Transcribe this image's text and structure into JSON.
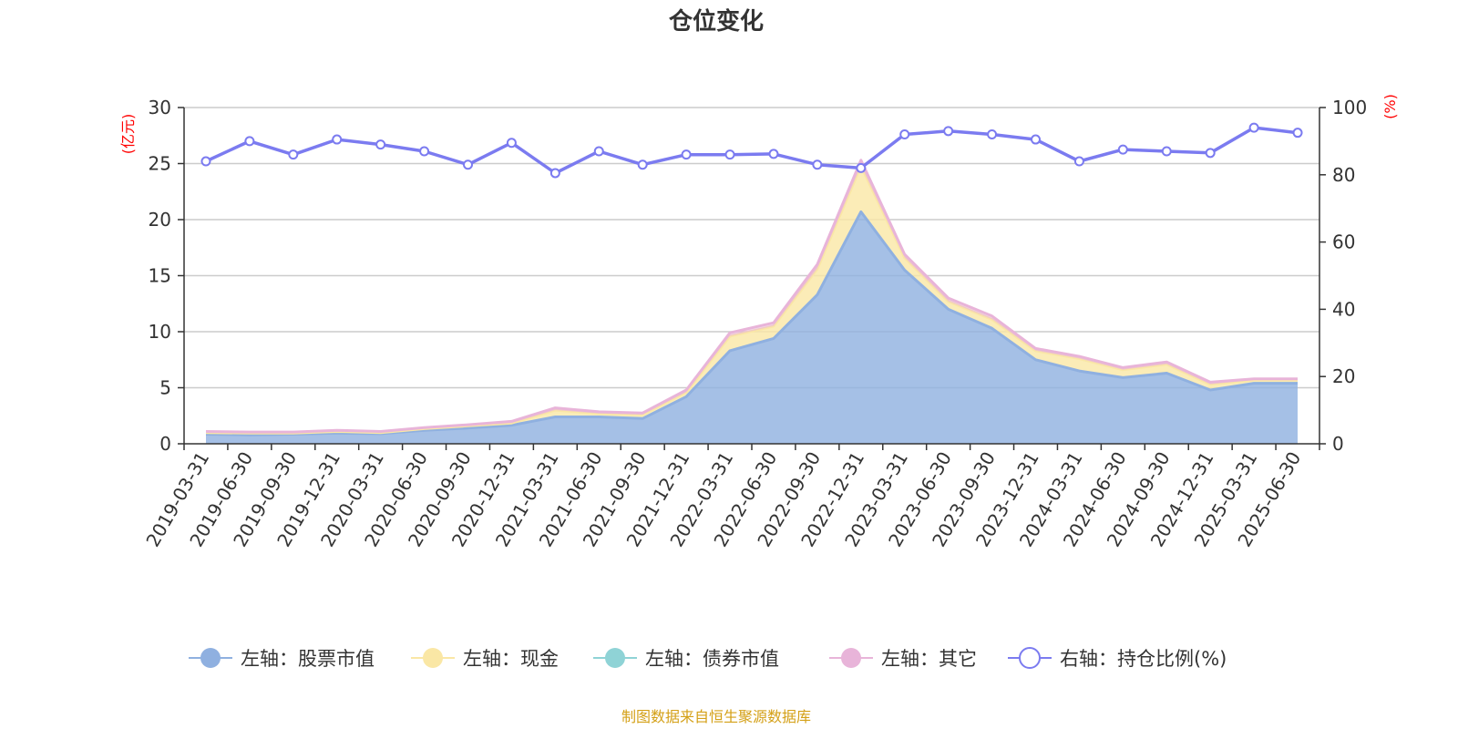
{
  "chart_data": {
    "type": "area",
    "title": "仓位变化",
    "left_axis_unit": "(亿元)",
    "right_axis_unit": "(%)",
    "categories": [
      "2019-03-31",
      "2019-06-30",
      "2019-09-30",
      "2019-12-31",
      "2020-03-31",
      "2020-06-30",
      "2020-09-30",
      "2020-12-31",
      "2021-03-31",
      "2021-06-30",
      "2021-09-30",
      "2021-12-31",
      "2022-03-31",
      "2022-06-30",
      "2022-09-30",
      "2022-12-31",
      "2023-03-31",
      "2023-06-30",
      "2023-09-30",
      "2023-12-31",
      "2024-03-31",
      "2024-06-30",
      "2024-09-30",
      "2024-12-31",
      "2025-03-31",
      "2025-06-30"
    ],
    "y_left": {
      "min": 0,
      "max": 30,
      "ticks": [
        "0",
        "5",
        "10",
        "15",
        "20",
        "25",
        "30"
      ]
    },
    "y_right": {
      "min": 0,
      "max": 100,
      "ticks": [
        "0",
        "20",
        "40",
        "60",
        "80",
        "100"
      ]
    },
    "grid": true,
    "legend_position": "bottom",
    "series": [
      {
        "name": "左轴：股票市值",
        "axis": "left",
        "kind": "stacked-area",
        "color": "#8fb0e0",
        "values": [
          0.85,
          0.8,
          0.85,
          0.95,
          0.9,
          1.2,
          1.4,
          1.65,
          2.4,
          2.4,
          2.25,
          4.2,
          8.3,
          9.4,
          13.3,
          20.7,
          15.5,
          12.0,
          10.3,
          7.5,
          6.5,
          5.9,
          6.3,
          4.8,
          5.4,
          5.4
        ]
      },
      {
        "name": "左轴：现金",
        "axis": "left",
        "kind": "stacked-area",
        "color": "#fae7a5",
        "values": [
          0.15,
          0.15,
          0.1,
          0.15,
          0.1,
          0.15,
          0.2,
          0.2,
          0.6,
          0.3,
          0.35,
          0.4,
          1.3,
          1.1,
          2.3,
          4.1,
          1.1,
          0.7,
          0.8,
          0.8,
          1.1,
          0.7,
          0.8,
          0.5,
          0.3,
          0.3
        ]
      },
      {
        "name": "左轴：债券市值",
        "axis": "left",
        "kind": "stacked-area",
        "color": "#8fd3d6",
        "values": [
          0,
          0,
          0,
          0,
          0,
          0,
          0,
          0,
          0,
          0,
          0,
          0,
          0,
          0,
          0,
          0,
          0,
          0,
          0,
          0,
          0,
          0,
          0,
          0,
          0,
          0
        ]
      },
      {
        "name": "左轴：其它",
        "axis": "left",
        "kind": "stacked-area",
        "color": "#e8b4d9",
        "values": [
          0.1,
          0.1,
          0.1,
          0.1,
          0.1,
          0.1,
          0.1,
          0.15,
          0.2,
          0.15,
          0.15,
          0.2,
          0.3,
          0.3,
          0.4,
          0.5,
          0.3,
          0.3,
          0.3,
          0.2,
          0.2,
          0.2,
          0.2,
          0.2,
          0.1,
          0.1
        ]
      },
      {
        "name": "右轴：持仓比例(%)",
        "axis": "right",
        "kind": "line",
        "color": "#7b7bf0",
        "values": [
          84,
          90,
          86,
          90.5,
          89,
          87,
          83,
          89.5,
          80.5,
          87,
          83,
          86,
          86,
          86.2,
          83,
          82,
          92,
          93,
          92,
          90.5,
          84,
          87.5,
          87,
          86.5,
          94,
          92.5
        ]
      }
    ]
  },
  "footer": {
    "source": "制图数据来自恒生聚源数据库"
  },
  "colors": {
    "unit_label": "#ff0000",
    "source_text": "#d4a017",
    "axis": "#333333",
    "grid": "#cccccc"
  }
}
